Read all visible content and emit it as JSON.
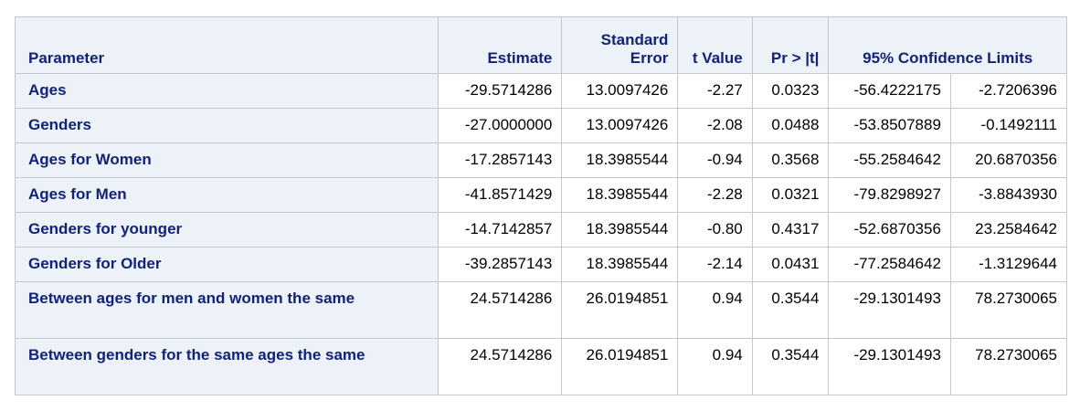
{
  "table": {
    "headers": {
      "parameter": "Parameter",
      "estimate": "Estimate",
      "std_error_line1": "Standard",
      "std_error_line2": "Error",
      "t_value": "t Value",
      "pr_t": "Pr > |t|",
      "confidence_limits": "95% Confidence Limits"
    },
    "rows": [
      {
        "parameter": "Ages",
        "estimate": "-29.5714286",
        "std_error": "13.0097426",
        "t_value": "-2.27",
        "pr_t": "0.0323",
        "lower": "-56.4222175",
        "upper": "-2.7206396"
      },
      {
        "parameter": "Genders",
        "estimate": "-27.0000000",
        "std_error": "13.0097426",
        "t_value": "-2.08",
        "pr_t": "0.0488",
        "lower": "-53.8507889",
        "upper": "-0.1492111"
      },
      {
        "parameter": "Ages for Women",
        "estimate": "-17.2857143",
        "std_error": "18.3985544",
        "t_value": "-0.94",
        "pr_t": "0.3568",
        "lower": "-55.2584642",
        "upper": "20.6870356"
      },
      {
        "parameter": "Ages for Men",
        "estimate": "-41.8571429",
        "std_error": "18.3985544",
        "t_value": "-2.28",
        "pr_t": "0.0321",
        "lower": "-79.8298927",
        "upper": "-3.8843930"
      },
      {
        "parameter": "Genders for younger",
        "estimate": "-14.7142857",
        "std_error": "18.3985544",
        "t_value": "-0.80",
        "pr_t": "0.4317",
        "lower": "-52.6870356",
        "upper": "23.2584642"
      },
      {
        "parameter": "Genders for Older",
        "estimate": "-39.2857143",
        "std_error": "18.3985544",
        "t_value": "-2.14",
        "pr_t": "0.0431",
        "lower": "-77.2584642",
        "upper": "-1.3129644"
      },
      {
        "parameter": "Between ages for men and women the same",
        "estimate": "24.5714286",
        "std_error": "26.0194851",
        "t_value": "0.94",
        "pr_t": "0.3544",
        "lower": "-29.1301493",
        "upper": "78.2730065"
      },
      {
        "parameter": "Between genders for the same ages the same",
        "estimate": "24.5714286",
        "std_error": "26.0194851",
        "t_value": "0.94",
        "pr_t": "0.3544",
        "lower": "-29.1301493",
        "upper": "78.2730065"
      }
    ]
  }
}
